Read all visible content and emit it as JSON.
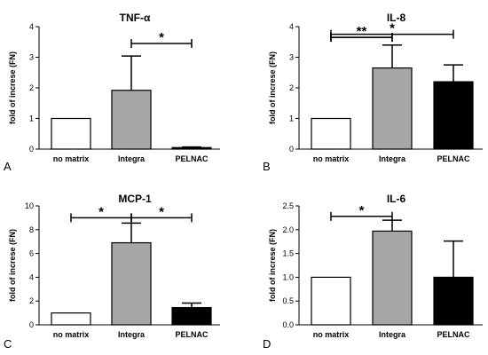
{
  "chart_data": [
    {
      "panel": "A",
      "type": "bar",
      "title": "TNF-α",
      "ylabel": "fold of increse (FN)",
      "categories": [
        "no matrix",
        "Integra",
        "PELNAC"
      ],
      "values": [
        1.0,
        1.92,
        0.05
      ],
      "errors": [
        0,
        1.12,
        0.02
      ],
      "bar_colors": [
        "#ffffff",
        "#a6a6a6",
        "#000000"
      ],
      "ylim": [
        0,
        4
      ],
      "yticks": [
        "0",
        "1",
        "2",
        "3",
        "4"
      ],
      "significance": [
        {
          "from": 1,
          "to": 2,
          "y": 3.45,
          "label": "*"
        }
      ]
    },
    {
      "panel": "B",
      "type": "bar",
      "title": "IL-8",
      "ylabel": "fold of increse (FN)",
      "categories": [
        "no matrix",
        "Integra",
        "PELNAC"
      ],
      "values": [
        1.0,
        2.65,
        2.2
      ],
      "errors": [
        0,
        0.75,
        0.55
      ],
      "bar_colors": [
        "#ffffff",
        "#a6a6a6",
        "#000000"
      ],
      "ylim": [
        0,
        4
      ],
      "yticks": [
        "0",
        "1",
        "2",
        "3",
        "4"
      ],
      "significance": [
        {
          "from": 0,
          "to": 2,
          "y": 3.75,
          "label": "*"
        },
        {
          "from": 0,
          "to": 1,
          "y": 3.65,
          "label": "**",
          "y_override": 3.68
        },
        {
          "from": 0,
          "to": 1,
          "y": 3.65,
          "label": ""
        }
      ]
    },
    {
      "panel": "C",
      "type": "bar",
      "title": "MCP-1",
      "ylabel": "fold of increse (FN)",
      "categories": [
        "no matrix",
        "Integra",
        "PELNAC"
      ],
      "values": [
        1.0,
        6.9,
        1.45
      ],
      "errors": [
        0,
        1.65,
        0.38
      ],
      "bar_colors": [
        "#ffffff",
        "#a6a6a6",
        "#000000"
      ],
      "ylim": [
        0,
        10
      ],
      "yticks": [
        "0",
        "2",
        "4",
        "6",
        "8",
        "10"
      ],
      "significance": [
        {
          "from": 0,
          "to": 1,
          "y": 9.0,
          "label": "*"
        },
        {
          "from": 1,
          "to": 2,
          "y": 9.0,
          "label": "*"
        }
      ]
    },
    {
      "panel": "D",
      "type": "bar",
      "title": "IL-6",
      "ylabel": "fold of increse (FN)",
      "categories": [
        "no matrix",
        "Integra",
        "PELNAC"
      ],
      "values": [
        1.0,
        1.97,
        1.0
      ],
      "errors": [
        0,
        0.23,
        0.76
      ],
      "bar_colors": [
        "#ffffff",
        "#a6a6a6",
        "#000000"
      ],
      "ylim": [
        0,
        2.5
      ],
      "yticks": [
        "0.0",
        "0.5",
        "1.0",
        "1.5",
        "2.0",
        "2.5"
      ],
      "significance": [
        {
          "from": 0,
          "to": 1,
          "y": 2.28,
          "label": "*"
        }
      ]
    }
  ]
}
